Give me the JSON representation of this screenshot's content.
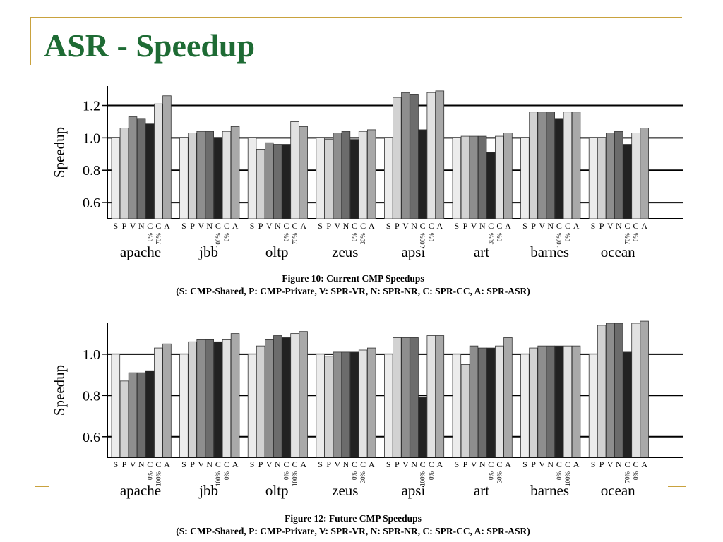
{
  "slide": {
    "title": "ASR - Speedup",
    "accent_color": "#C9A23E",
    "title_color": "#1E6B34"
  },
  "bar_letters": [
    "S",
    "P",
    "V",
    "N",
    "C",
    "C",
    "A"
  ],
  "bar_colors": [
    "#ececec",
    "#d2d2d2",
    "#8e8e8e",
    "#6c6c6c",
    "#222222",
    "#e2e2e2",
    "#a9a9a9"
  ],
  "figures": [
    {
      "caption": "Figure 10: Current CMP Speedups",
      "caption_sub": "(S: CMP-Shared, P: CMP-Private, V: SPR-VR, N: SPR-NR, C: SPR-CC, A: SPR-ASR)"
    },
    {
      "caption": "Figure 12: Future CMP Speedups",
      "caption_sub": "(S: CMP-Shared, P: CMP-Private, V: SPR-VR, N: SPR-NR, C: SPR-CC, A: SPR-ASR)"
    }
  ],
  "chart_data": [
    {
      "type": "bar",
      "ylabel": "Speedup",
      "ylim": [
        0.5,
        1.32
      ],
      "yticks": [
        0.6,
        0.8,
        1.0,
        1.2
      ],
      "ytick_labels": [
        "0.6",
        "0.8",
        "1.0",
        "1.2"
      ],
      "gridlines": [
        0.6,
        0.8,
        1.0,
        1.2
      ],
      "bar_labels": [
        "S",
        "P",
        "V",
        "N",
        "C",
        "C",
        "A"
      ],
      "categories": [
        "apache",
        "jbb",
        "oltp",
        "zeus",
        "apsi",
        "art",
        "barnes",
        "ocean"
      ],
      "cc_labels": [
        [
          "0%",
          "70%"
        ],
        [
          "100%",
          "0%"
        ],
        [
          "0%",
          "70%"
        ],
        [
          "0%",
          "30%"
        ],
        [
          "100%",
          "0%"
        ],
        [
          "30%",
          "0%"
        ],
        [
          "100%",
          "0%"
        ],
        [
          "70%",
          "0%"
        ]
      ],
      "series": [
        {
          "name": "S",
          "values": [
            1.0,
            1.0,
            1.0,
            1.0,
            1.0,
            1.0,
            1.0,
            1.0
          ]
        },
        {
          "name": "P",
          "values": [
            1.06,
            1.03,
            0.93,
            0.99,
            1.25,
            1.01,
            1.16,
            1.0
          ]
        },
        {
          "name": "V",
          "values": [
            1.13,
            1.04,
            0.97,
            1.03,
            1.28,
            1.01,
            1.16,
            1.03
          ]
        },
        {
          "name": "N",
          "values": [
            1.12,
            1.04,
            0.96,
            1.04,
            1.27,
            1.01,
            1.16,
            1.04
          ]
        },
        {
          "name": "C",
          "values": [
            1.09,
            1.0,
            0.96,
            0.99,
            1.05,
            0.91,
            1.12,
            0.96
          ]
        },
        {
          "name": "C",
          "values": [
            1.21,
            1.04,
            1.1,
            1.04,
            1.28,
            1.01,
            1.16,
            1.03
          ]
        },
        {
          "name": "A",
          "values": [
            1.26,
            1.07,
            1.07,
            1.05,
            1.29,
            1.03,
            1.16,
            1.06
          ]
        }
      ]
    },
    {
      "type": "bar",
      "ylabel": "Speedup",
      "ylim": [
        0.5,
        1.15
      ],
      "yticks": [
        0.6,
        0.8,
        1.0
      ],
      "ytick_labels": [
        "0.6",
        "0.8",
        "1.0"
      ],
      "gridlines": [
        0.6,
        0.8,
        1.0
      ],
      "bar_labels": [
        "S",
        "P",
        "V",
        "N",
        "C",
        "C",
        "A"
      ],
      "categories": [
        "apache",
        "jbb",
        "oltp",
        "zeus",
        "apsi",
        "art",
        "barnes",
        "ocean"
      ],
      "cc_labels": [
        [
          "0%",
          "100%"
        ],
        [
          "100%",
          "0%"
        ],
        [
          "0%",
          "100%"
        ],
        [
          "0%",
          "30%"
        ],
        [
          "100%",
          "0%"
        ],
        [
          "0%",
          "30%"
        ],
        [
          "0%",
          "100%"
        ],
        [
          "70%",
          "0%"
        ]
      ],
      "series": [
        {
          "name": "S",
          "values": [
            1.0,
            1.0,
            1.0,
            1.0,
            1.0,
            1.0,
            1.0,
            1.0
          ]
        },
        {
          "name": "P",
          "values": [
            0.87,
            1.06,
            1.04,
            0.99,
            1.08,
            0.95,
            1.03,
            1.14
          ]
        },
        {
          "name": "V",
          "values": [
            0.91,
            1.07,
            1.07,
            1.01,
            1.08,
            1.04,
            1.04,
            1.15
          ]
        },
        {
          "name": "N",
          "values": [
            0.91,
            1.07,
            1.09,
            1.01,
            1.08,
            1.03,
            1.04,
            1.15
          ]
        },
        {
          "name": "C",
          "values": [
            0.92,
            1.06,
            1.08,
            1.01,
            0.79,
            1.03,
            1.04,
            1.01
          ]
        },
        {
          "name": "C",
          "values": [
            1.03,
            1.07,
            1.1,
            1.02,
            1.09,
            1.04,
            1.04,
            1.15
          ]
        },
        {
          "name": "A",
          "values": [
            1.05,
            1.1,
            1.11,
            1.03,
            1.09,
            1.08,
            1.04,
            1.16
          ]
        }
      ]
    }
  ]
}
